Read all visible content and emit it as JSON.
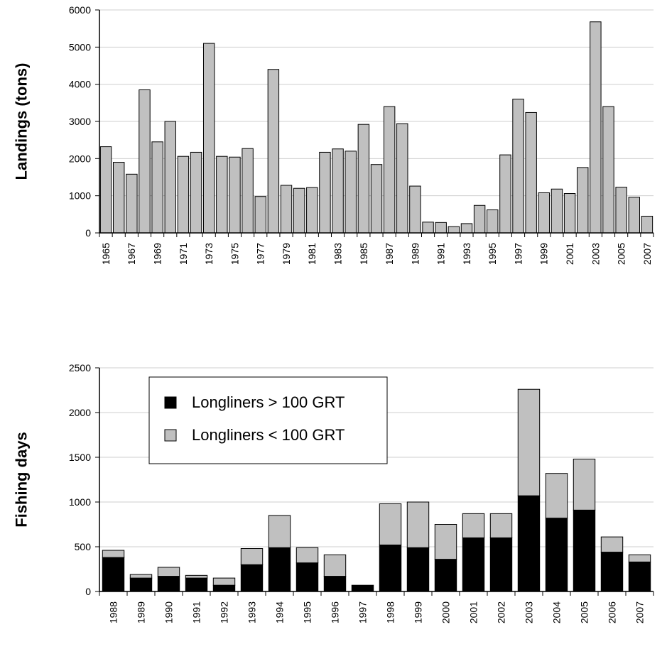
{
  "chart_data": [
    {
      "type": "bar",
      "ylabel": "Landings (tons)",
      "ylim": [
        0,
        6000
      ],
      "yticks": [
        0,
        1000,
        2000,
        3000,
        4000,
        5000,
        6000
      ],
      "grid": true,
      "bar_color": "#c0c0c0",
      "categories": [
        "1965",
        "1966",
        "1967",
        "1968",
        "1969",
        "1970",
        "1971",
        "1972",
        "1973",
        "1974",
        "1975",
        "1976",
        "1977",
        "1978",
        "1979",
        "1980",
        "1981",
        "1982",
        "1983",
        "1984",
        "1985",
        "1986",
        "1987",
        "1988",
        "1989",
        "1990",
        "1991",
        "1992",
        "1993",
        "1994",
        "1995",
        "1996",
        "1997",
        "1998",
        "1999",
        "2000",
        "2001",
        "2002",
        "2003",
        "2004",
        "2005",
        "2006",
        "2007"
      ],
      "tick_labels": [
        "1965",
        "",
        "1967",
        "",
        "1969",
        "",
        "1971",
        "",
        "1973",
        "",
        "1975",
        "",
        "1977",
        "",
        "1979",
        "",
        "1981",
        "",
        "1983",
        "",
        "1985",
        "",
        "1987",
        "",
        "1989",
        "",
        "1991",
        "",
        "1993",
        "",
        "1995",
        "",
        "1997",
        "",
        "1999",
        "",
        "2001",
        "",
        "2003",
        "",
        "2005",
        "",
        "2007"
      ],
      "values": [
        2320,
        1900,
        1580,
        3850,
        2450,
        3000,
        2060,
        2170,
        5100,
        2060,
        2040,
        2270,
        980,
        4400,
        1280,
        1200,
        1220,
        2170,
        2260,
        2200,
        2920,
        1840,
        3400,
        2940,
        1260,
        290,
        280,
        170,
        250,
        740,
        620,
        2100,
        3600,
        3240,
        1080,
        1180,
        1060,
        1760,
        5680,
        3400,
        1230,
        960,
        450
      ]
    },
    {
      "type": "bar",
      "stacked": true,
      "ylabel": "Fishing days",
      "ylim": [
        0,
        2500
      ],
      "yticks": [
        0,
        500,
        1000,
        1500,
        2000,
        2500
      ],
      "grid": true,
      "legend_position": "top-left",
      "categories": [
        "1988",
        "1989",
        "1990",
        "1991",
        "1992",
        "1993",
        "1994",
        "1995",
        "1996",
        "1997",
        "1998",
        "1999",
        "2000",
        "2001",
        "2002",
        "2003",
        "2004",
        "2005",
        "2006",
        "2007"
      ],
      "series": [
        {
          "name": "Longliners > 100 GRT",
          "color": "#000000",
          "values": [
            380,
            150,
            170,
            150,
            70,
            300,
            490,
            320,
            170,
            70,
            520,
            490,
            360,
            600,
            600,
            1070,
            820,
            910,
            440,
            330
          ]
        },
        {
          "name": "Longliners < 100 GRT",
          "color": "#c0c0c0",
          "values": [
            80,
            40,
            100,
            30,
            80,
            180,
            360,
            170,
            240,
            0,
            460,
            510,
            390,
            270,
            270,
            1190,
            500,
            570,
            170,
            80
          ]
        }
      ]
    }
  ]
}
